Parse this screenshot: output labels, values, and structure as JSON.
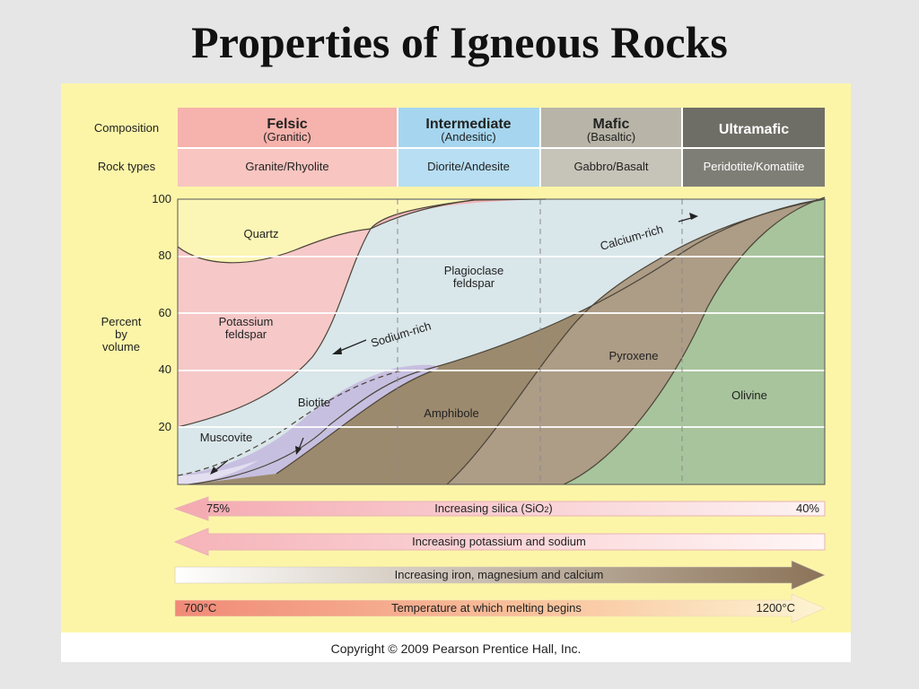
{
  "slide": {
    "title": "Properties of Igneous Rocks"
  },
  "header": {
    "composition_label": "Composition",
    "rock_types_label": "Rock types",
    "columns": [
      {
        "name": "Felsic",
        "sub": "(Granitic)",
        "rocks": "Granite/Rhyolite",
        "color": "#f6b2ac",
        "rock_color": "#f8c5c0"
      },
      {
        "name": "Intermediate",
        "sub": "(Andesitic)",
        "rocks": "Diorite/Andesite",
        "color": "#a6d6ef",
        "rock_color": "#b7def2"
      },
      {
        "name": "Mafic",
        "sub": "(Basaltic)",
        "rocks": "Gabbro/Basalt",
        "color": "#b8b5a8",
        "rock_color": "#c6c3b8"
      },
      {
        "name": "Ultramafic",
        "sub": "",
        "rocks": "Peridotite/Komatiite",
        "color": "#6f6e66",
        "rock_color": "#7f7e76"
      }
    ]
  },
  "chart": {
    "y_axis_label": [
      "Percent",
      "by",
      "volume"
    ],
    "y_ticks": [
      "100",
      "80",
      "60",
      "40",
      "20"
    ],
    "minerals": {
      "quartz": "Quartz",
      "potassium_feldspar": [
        "Potassium",
        "feldspar"
      ],
      "plagioclase_feldspar": [
        "Plagioclase",
        "feldspar"
      ],
      "sodium_rich": "Sodium-rich",
      "calcium_rich": "Calcium-rich",
      "biotite": "Biotite",
      "muscovite": "Muscovite",
      "amphibole": "Amphibole",
      "pyroxene": "Pyroxene",
      "olivine": "Olivine"
    }
  },
  "arrows": {
    "silica": {
      "label": "Increasing silica (SiO",
      "sub": "2",
      "close": ")",
      "left": "75%",
      "right": "40%"
    },
    "potassium": {
      "label": "Increasing potassium and sodium"
    },
    "iron": {
      "label": "Increasing iron, magnesium and calcium"
    },
    "temperature": {
      "label": "Temperature at which melting begins",
      "left": "700°C",
      "right": "1200°C"
    }
  },
  "copyright": "Copyright © 2009 Pearson Prentice Hall, Inc."
}
